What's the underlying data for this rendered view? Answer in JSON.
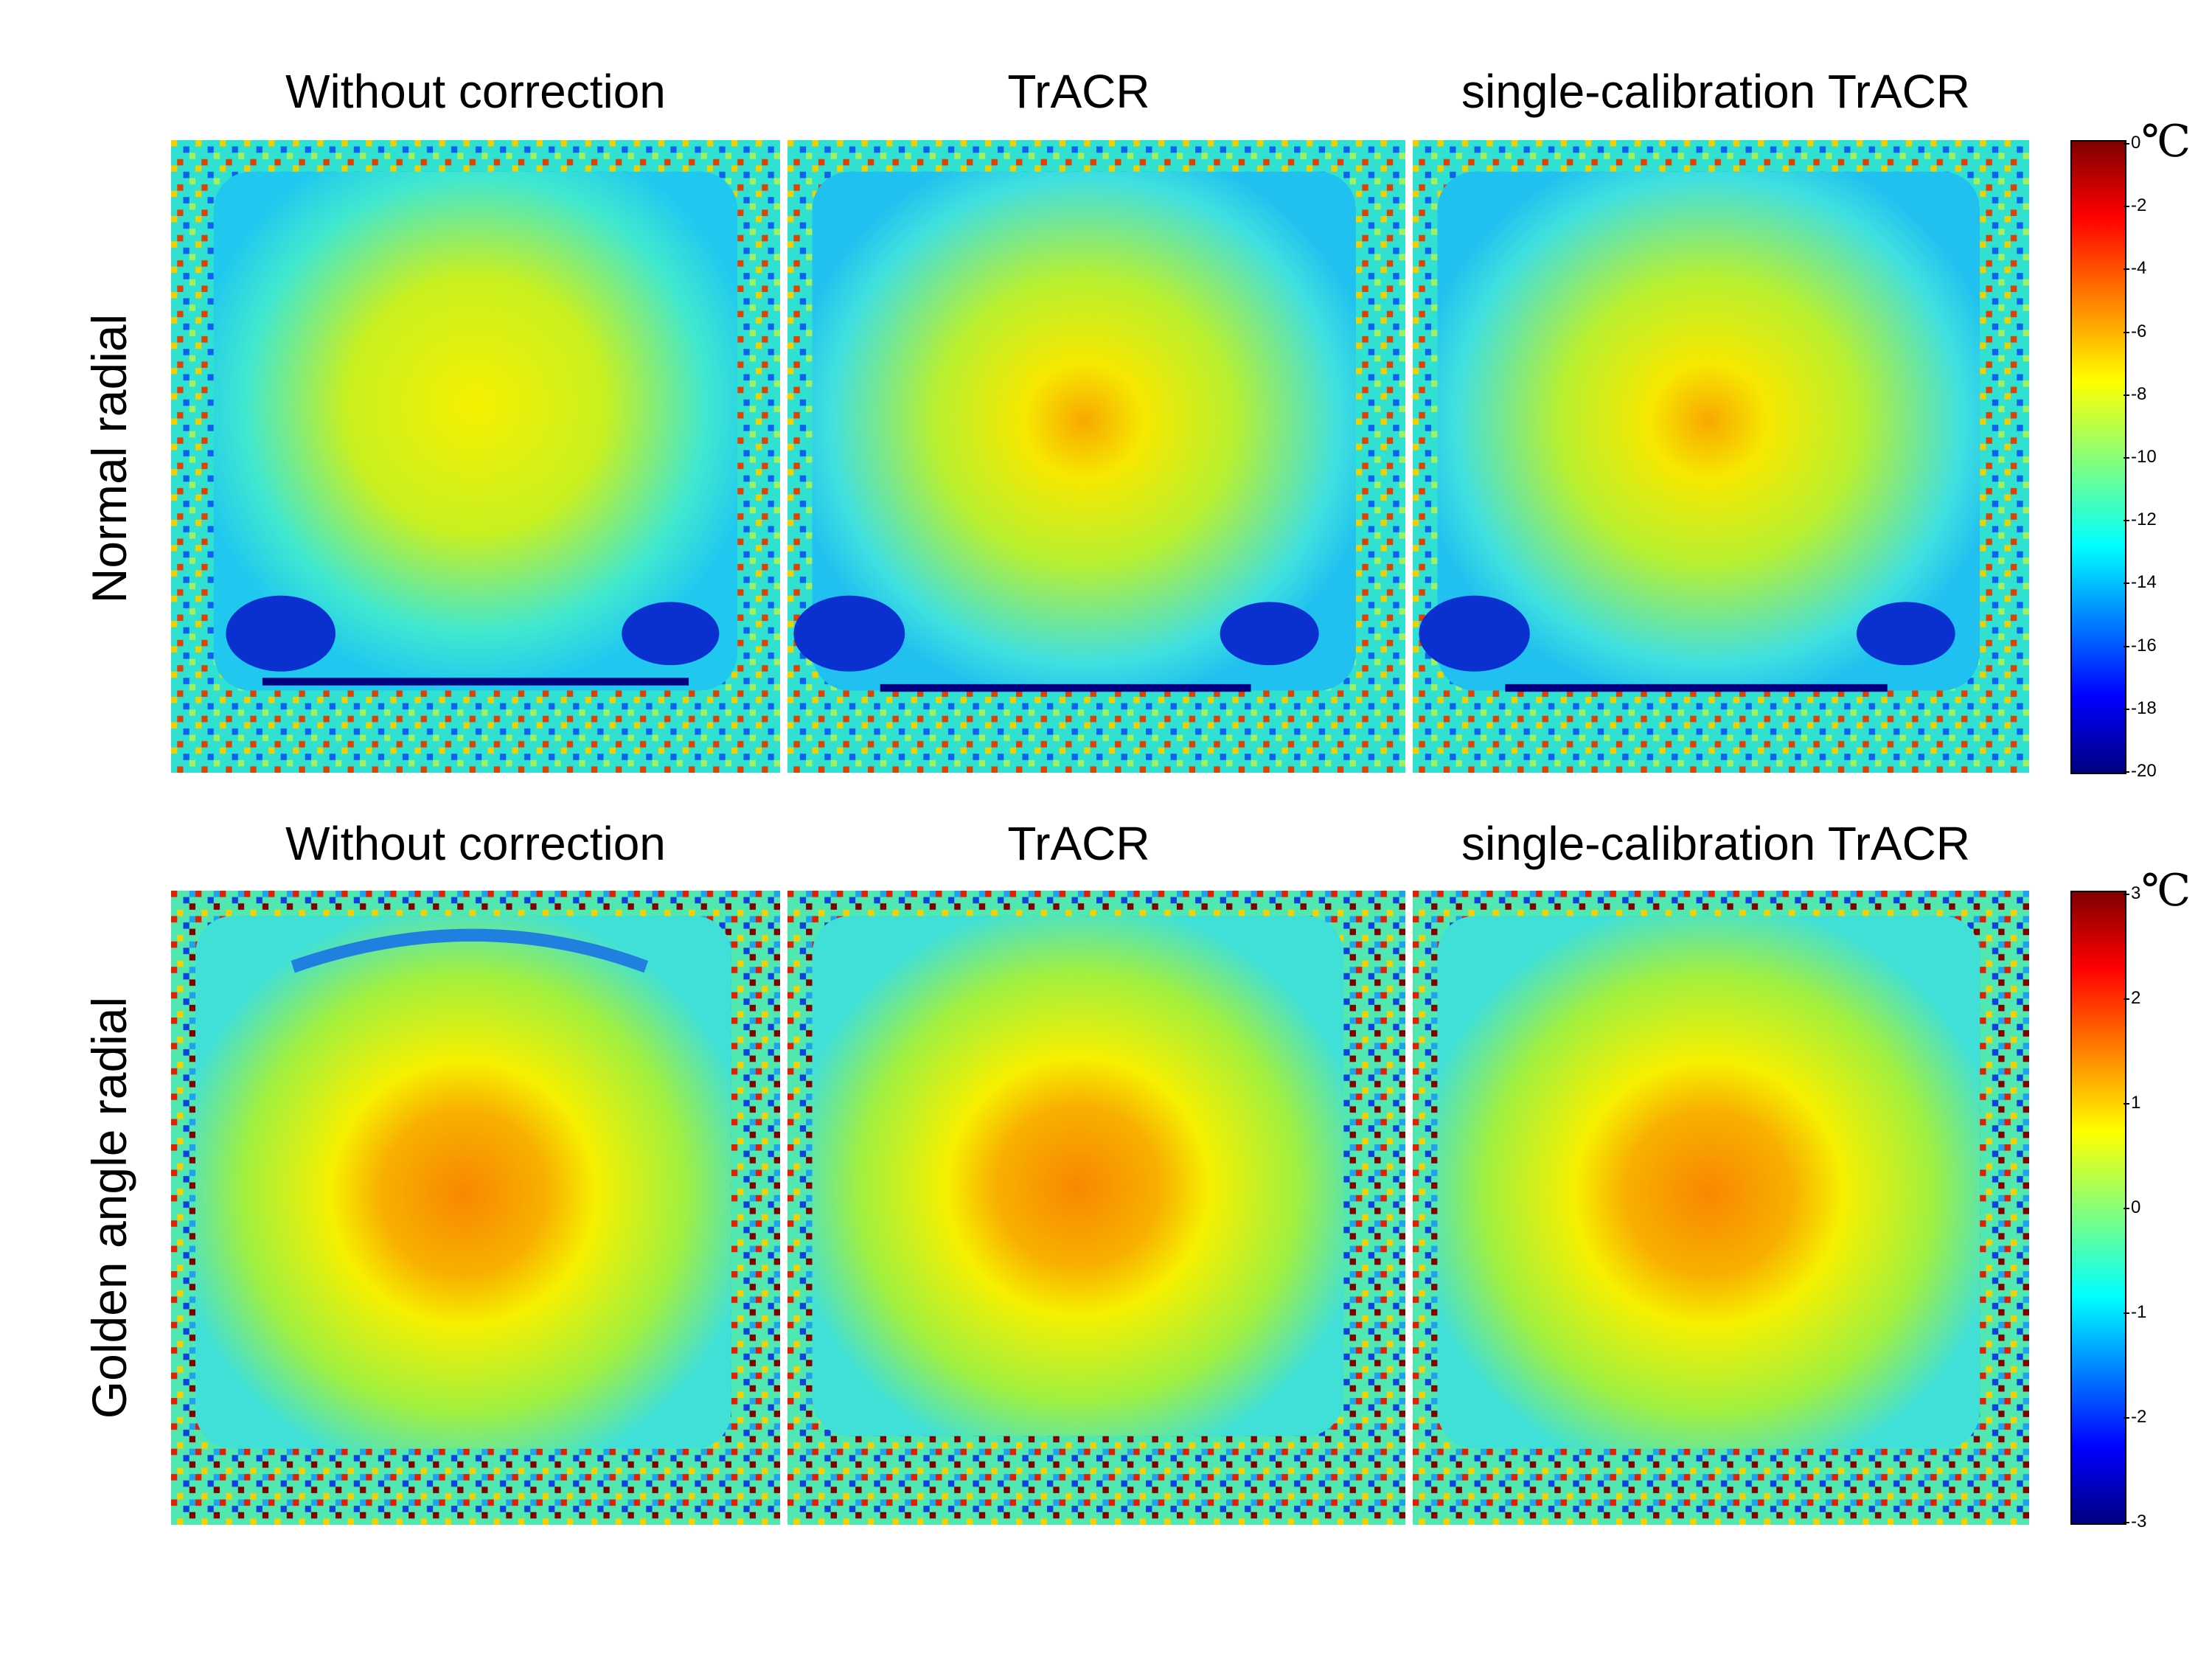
{
  "columns": [
    "Without correction",
    "TrACR",
    "single-calibration TrACR"
  ],
  "rows": [
    {
      "label": "Normal radial",
      "colorbar": {
        "unit": "℃",
        "ticks": [
          "0",
          "-2",
          "-4",
          "-6",
          "-8",
          "-10",
          "-12",
          "-14",
          "-16",
          "-18",
          "-20"
        ],
        "range": [
          -20,
          0
        ]
      }
    },
    {
      "label": "Golden angle radial",
      "colorbar": {
        "unit": "℃",
        "ticks": [
          "3",
          "2",
          "1",
          "0",
          "-1",
          "-2",
          "-3"
        ],
        "range": [
          -3,
          3
        ]
      }
    }
  ],
  "colormap": "jet"
}
